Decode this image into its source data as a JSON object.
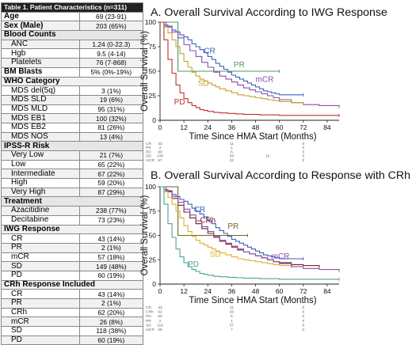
{
  "table": {
    "title": "Table 1. Patient Characteristics (n=311)",
    "rows": [
      {
        "kind": "top",
        "label": "Age",
        "value": "69 (23-91)"
      },
      {
        "kind": "top",
        "label": "Sex (Male)",
        "value": "203 (65%)"
      },
      {
        "kind": "group",
        "label": "Blood Counts",
        "value": ""
      },
      {
        "kind": "item",
        "label": "ANC",
        "value": "1.24 (0-22.3)"
      },
      {
        "kind": "item",
        "label": "Hgb",
        "value": "9.5 (4-14)"
      },
      {
        "kind": "item",
        "label": "Platelets",
        "value": "76 (7-868)"
      },
      {
        "kind": "top",
        "label": "BM Blasts",
        "value": "5% (0%-19%)"
      },
      {
        "kind": "group",
        "label": "WHO Category",
        "value": ""
      },
      {
        "kind": "item",
        "label": "MDS del(5q)",
        "value": "3 (1%)"
      },
      {
        "kind": "item",
        "label": "MDS SLD",
        "value": "19 (6%)"
      },
      {
        "kind": "item",
        "label": "MDS MLD",
        "value": "95 (31%)"
      },
      {
        "kind": "item",
        "label": "MDS EB1",
        "value": "100 (32%)"
      },
      {
        "kind": "item",
        "label": "MDS EB2",
        "value": "81 (26%)"
      },
      {
        "kind": "item",
        "label": "MDS NOS",
        "value": "13 (4%)"
      },
      {
        "kind": "group",
        "label": "IPSS-R Risk",
        "value": ""
      },
      {
        "kind": "item",
        "label": "Very Low",
        "value": "21 (7%)"
      },
      {
        "kind": "item",
        "label": "Low",
        "value": "65 (22%)"
      },
      {
        "kind": "item",
        "label": "Intermediate",
        "value": "67 (22%)"
      },
      {
        "kind": "item",
        "label": "High",
        "value": "59 (20%)"
      },
      {
        "kind": "item",
        "label": "Very High",
        "value": "87 (29%)"
      },
      {
        "kind": "group",
        "label": "Treatment",
        "value": ""
      },
      {
        "kind": "item",
        "label": "Azacitidine",
        "value": "238 (77%)"
      },
      {
        "kind": "item",
        "label": "Decitabine",
        "value": "73 (23%)"
      },
      {
        "kind": "group",
        "label": "IWG Response",
        "value": ""
      },
      {
        "kind": "item",
        "label": "CR",
        "value": "43 (14%)"
      },
      {
        "kind": "item",
        "label": "PR",
        "value": "2 (1%)"
      },
      {
        "kind": "item",
        "label": "mCR",
        "value": "57 (18%)"
      },
      {
        "kind": "item",
        "label": "SD",
        "value": "149 (48%)"
      },
      {
        "kind": "item",
        "label": "PD",
        "value": "60 (19%)"
      },
      {
        "kind": "group",
        "label": "CRh Response Included",
        "value": ""
      },
      {
        "kind": "item",
        "label": "CR",
        "value": "43 (14%)"
      },
      {
        "kind": "item",
        "label": "PR",
        "value": "2 (1%)"
      },
      {
        "kind": "item",
        "label": "CRh",
        "value": "62 (20%)"
      },
      {
        "kind": "item",
        "label": "mCR",
        "value": "26 (8%)"
      },
      {
        "kind": "item",
        "label": "SD",
        "value": "118 (38%)"
      },
      {
        "kind": "item",
        "label": "PD",
        "value": "60 (19%)"
      }
    ]
  },
  "chart_data": [
    {
      "type": "line",
      "title": "A. Overall Survival According to IWG Response",
      "xlabel": "Time Since HMA Start (Months)",
      "ylabel": "Overall Survival (%)",
      "xlim": [
        0,
        90
      ],
      "ylim": [
        0,
        100
      ],
      "xticks": [
        "0",
        "12",
        "24",
        "36",
        "48",
        "60",
        "72",
        "84"
      ],
      "yticks": [
        "0",
        "25",
        "50",
        "75",
        "100"
      ],
      "series": [
        {
          "name": "CR",
          "color": "#3d5fc4",
          "label_x": 22,
          "label_y": 68,
          "x": [
            0,
            2,
            4,
            6,
            8,
            10,
            12,
            14,
            16,
            18,
            20,
            22,
            24,
            26,
            28,
            30,
            32,
            34,
            36,
            38,
            40,
            42,
            44,
            46,
            48,
            50,
            52,
            54,
            56,
            58,
            60,
            66,
            72
          ],
          "y": [
            100,
            97,
            95,
            92,
            90,
            87,
            85,
            82,
            78,
            75,
            72,
            69,
            65,
            62,
            58,
            55,
            52,
            49,
            46,
            44,
            42,
            40,
            38,
            36,
            34,
            32,
            30,
            29,
            28,
            27,
            26,
            26,
            26
          ]
        },
        {
          "name": "PR",
          "color": "#4a9c5e",
          "label_x": 37,
          "label_y": 54,
          "x": [
            0,
            9,
            9,
            32,
            32,
            60
          ],
          "y": [
            100,
            100,
            50,
            50,
            50,
            50
          ]
        },
        {
          "name": "mCR",
          "color": "#8a4fa8",
          "label_x": 48,
          "label_y": 39,
          "x": [
            0,
            3,
            6,
            9,
            12,
            15,
            18,
            21,
            24,
            27,
            30,
            33,
            36,
            39,
            42,
            45,
            48,
            51,
            54,
            57,
            60,
            66,
            72,
            80,
            90
          ],
          "y": [
            100,
            96,
            90,
            84,
            77,
            71,
            65,
            59,
            54,
            49,
            45,
            42,
            39,
            36,
            33,
            31,
            29,
            27,
            25,
            23,
            21,
            18,
            16,
            15,
            14
          ]
        },
        {
          "name": "SD",
          "color": "#c9a12e",
          "label_x": 19,
          "label_y": 35,
          "x": [
            0,
            2,
            4,
            6,
            8,
            10,
            12,
            14,
            16,
            18,
            20,
            22,
            24,
            26,
            28,
            30,
            33,
            36,
            39,
            42,
            45,
            48,
            51,
            54,
            57,
            60,
            66,
            72
          ],
          "y": [
            100,
            95,
            89,
            82,
            75,
            68,
            60,
            54,
            49,
            45,
            42,
            40,
            38,
            36,
            34,
            32,
            30,
            28,
            26,
            25,
            24,
            23,
            22,
            21,
            20,
            19,
            18,
            17
          ]
        },
        {
          "name": "PD",
          "color": "#c42f2f",
          "label_x": 7,
          "label_y": 16,
          "x": [
            0,
            2,
            4,
            6,
            8,
            10,
            12,
            14,
            16,
            18,
            20,
            22,
            24,
            27,
            30,
            34,
            38,
            42,
            46,
            50,
            55,
            60,
            66,
            72,
            78,
            84,
            90
          ],
          "y": [
            100,
            82,
            62,
            48,
            36,
            28,
            22,
            18,
            15,
            13,
            11,
            10,
            9,
            8,
            7.5,
            7,
            6.5,
            6,
            6,
            5.5,
            5.5,
            5,
            5,
            5,
            5,
            5,
            5
          ]
        }
      ],
      "risk_table": {
        "labels": [
          "CR",
          "PR",
          "PD",
          "SD",
          "mCR"
        ],
        "colors": [
          "#3d5fc4",
          "#4a9c5e",
          "#c42f2f",
          "#c9a12e",
          "#8a4fa8"
        ],
        "rows": [
          [
            "43",
            "",
            "11",
            "",
            "0"
          ],
          [
            "2",
            "",
            "1",
            "",
            "0"
          ],
          [
            "60",
            "",
            "5",
            "",
            "0"
          ],
          [
            "149",
            "",
            "53",
            "10",
            "0"
          ],
          [
            "57",
            "",
            "22",
            "",
            "0"
          ]
        ]
      }
    },
    {
      "type": "line",
      "title": "B. Overall Survival According to Response with CRh",
      "xlabel": "Time Since HMA Start (Months)",
      "ylabel": "Overall Survival (%)",
      "xlim": [
        0,
        90
      ],
      "ylim": [
        0,
        100
      ],
      "xticks": [
        "0",
        "12",
        "24",
        "36",
        "48",
        "60",
        "72",
        "84"
      ],
      "yticks": [
        "0",
        "25",
        "50",
        "75",
        "100"
      ],
      "series": [
        {
          "name": "CR",
          "color": "#3d5fc4",
          "label_x": 17,
          "label_y": 74,
          "x": [
            0,
            2,
            4,
            6,
            8,
            10,
            12,
            14,
            16,
            18,
            20,
            22,
            24,
            26,
            28,
            30,
            32,
            34,
            36,
            38,
            40,
            42,
            44,
            46,
            48,
            50,
            52,
            54,
            56,
            58,
            60,
            66,
            72
          ],
          "y": [
            100,
            97,
            95,
            92,
            90,
            87,
            85,
            82,
            78,
            75,
            72,
            69,
            65,
            62,
            58,
            55,
            52,
            49,
            46,
            44,
            42,
            40,
            38,
            36,
            34,
            32,
            30,
            29,
            28,
            27,
            26,
            26,
            26
          ]
        },
        {
          "name": "CRh",
          "color": "#7a1f24",
          "label_x": 20,
          "label_y": 63,
          "x": [
            0,
            3,
            6,
            9,
            12,
            15,
            18,
            21,
            24,
            27,
            30,
            33,
            36,
            39,
            42,
            45,
            48,
            51,
            54,
            57,
            60,
            66,
            72,
            80
          ],
          "y": [
            100,
            95,
            88,
            81,
            74,
            68,
            62,
            57,
            52,
            48,
            44,
            41,
            38,
            35,
            33,
            31,
            29,
            27,
            25,
            23,
            22,
            20,
            19,
            18
          ]
        },
        {
          "name": "PR",
          "color": "#6e6a20",
          "label_x": 34,
          "label_y": 57,
          "x": [
            0,
            9,
            9,
            44
          ],
          "y": [
            100,
            100,
            50,
            50
          ]
        },
        {
          "name": "SD",
          "color": "#e0b12c",
          "label_x": 25,
          "label_y": 28,
          "x": [
            0,
            2,
            4,
            6,
            8,
            10,
            12,
            14,
            16,
            18,
            20,
            22,
            24,
            26,
            28,
            30,
            33,
            36,
            39,
            42,
            45,
            48,
            51,
            54,
            57,
            60,
            66
          ],
          "y": [
            100,
            95,
            89,
            82,
            75,
            68,
            60,
            54,
            49,
            45,
            42,
            40,
            38,
            36,
            34,
            32,
            30,
            28,
            26,
            25,
            24,
            23,
            22,
            21,
            20,
            19,
            18
          ]
        },
        {
          "name": "mCR",
          "color": "#8a4fa8",
          "label_x": 56,
          "label_y": 26,
          "x": [
            0,
            3,
            6,
            9,
            12,
            15,
            18,
            21,
            24,
            27,
            30,
            33,
            36,
            39,
            42,
            45,
            48,
            51,
            54,
            57,
            60,
            66,
            72,
            80,
            90
          ],
          "y": [
            100,
            96,
            90,
            84,
            77,
            71,
            65,
            59,
            54,
            49,
            45,
            42,
            39,
            36,
            33,
            31,
            29,
            27,
            25,
            23,
            21,
            18,
            16,
            15,
            14
          ]
        },
        {
          "name": "PD",
          "color": "#4aa39a",
          "label_x": 14,
          "label_y": 18,
          "x": [
            0,
            2,
            4,
            6,
            8,
            10,
            12,
            14,
            16,
            18,
            20,
            22,
            24,
            27,
            30,
            34,
            38,
            42,
            46,
            50,
            55,
            60,
            66,
            72,
            78,
            84,
            90
          ],
          "y": [
            100,
            82,
            62,
            48,
            36,
            28,
            22,
            18,
            15,
            13,
            11,
            10,
            9,
            8,
            7.5,
            7,
            6.5,
            6,
            6,
            5.5,
            5.5,
            5,
            5,
            5,
            5,
            5,
            5
          ]
        }
      ],
      "risk_table": {
        "labels": [
          "CR",
          "CRh",
          "PD",
          "PR",
          "SD",
          "mCR"
        ],
        "colors": [
          "#3d5fc4",
          "#7a1f24",
          "#4aa39a",
          "#6e6a20",
          "#e0b12c",
          "#8a4fa8"
        ],
        "rows": [
          [
            "43",
            "",
            "11",
            "",
            "0"
          ],
          [
            "62",
            "",
            "25",
            "",
            "0"
          ],
          [
            "60",
            "",
            "5",
            "",
            "0"
          ],
          [
            "2",
            "",
            "1",
            "",
            "0"
          ],
          [
            "118",
            "",
            "37",
            "",
            "0"
          ],
          [
            "26",
            "",
            "7",
            "",
            "0"
          ]
        ]
      }
    }
  ]
}
